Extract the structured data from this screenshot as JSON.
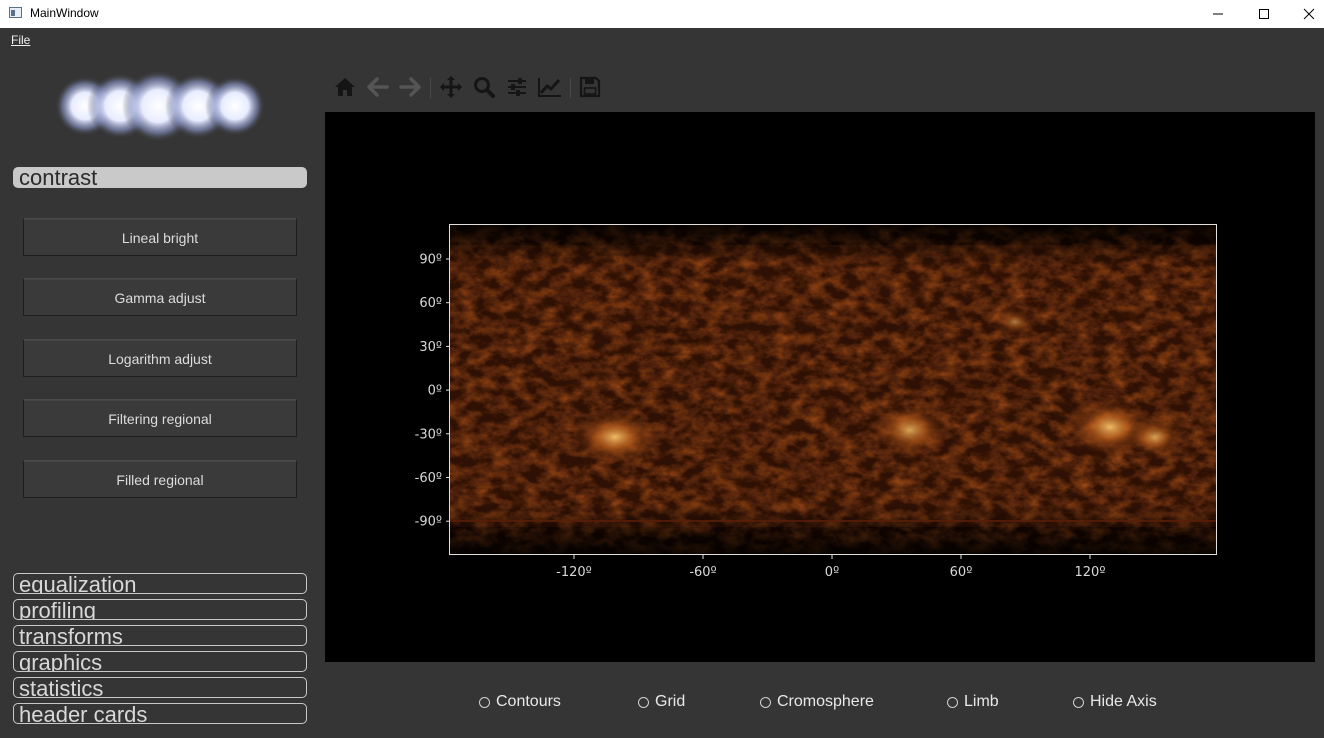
{
  "window": {
    "title": "MainWindow"
  },
  "menu": {
    "file": "File"
  },
  "sidebar": {
    "active_section": "contrast",
    "buttons": [
      "Lineal bright",
      "Gamma adjust",
      "Logarithm adjust",
      "Filtering regional",
      "Filled regional"
    ],
    "sections": [
      "equalization",
      "profiling",
      "transforms",
      "graphics",
      "statistics",
      "header cards"
    ]
  },
  "toolbar": {
    "icons": [
      "home-icon",
      "back-arrow-icon",
      "forward-arrow-icon",
      "pan-move-icon",
      "zoom-magnifier-icon",
      "configure-subplots-icon",
      "edit-axis-icon",
      "save-disk-icon"
    ]
  },
  "plot": {
    "y_ticks": [
      "90º",
      "60º",
      "30º",
      "0º",
      "-30º",
      "-60º",
      "-90º"
    ],
    "x_ticks": [
      "-120º",
      "-60º",
      "0º",
      "60º",
      "120º"
    ],
    "colormap": "solar-hot"
  },
  "options": [
    "Contours",
    "Grid",
    "Cromosphere",
    "Limb",
    "Hide Axis"
  ]
}
